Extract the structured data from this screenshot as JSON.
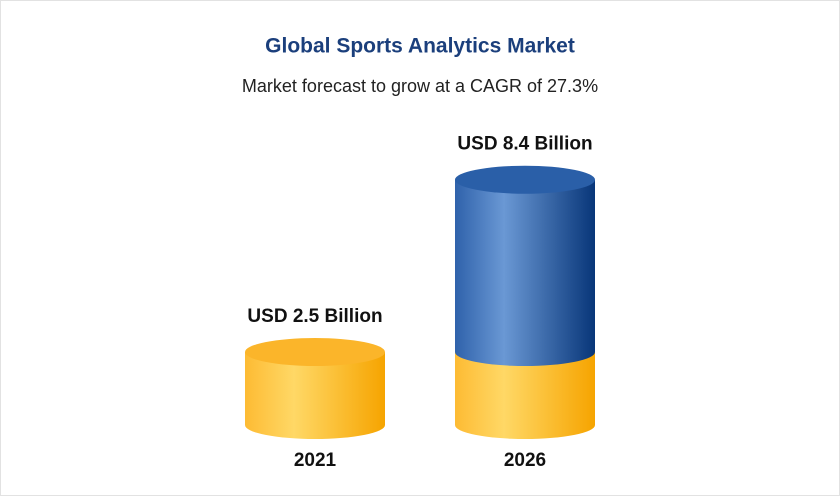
{
  "chart_data": {
    "type": "cylinder-bar",
    "title": "Global Sports Analytics Market",
    "subtitle": "Market forecast to grow at a CAGR of 27.3%",
    "categories": [
      "2021",
      "2026"
    ],
    "values": [
      2.5,
      8.4
    ],
    "value_labels": [
      "USD 2.5 Billion",
      "USD 8.4 Billion"
    ],
    "colors": [
      "#fbb52a",
      "#2a5fa8"
    ]
  }
}
